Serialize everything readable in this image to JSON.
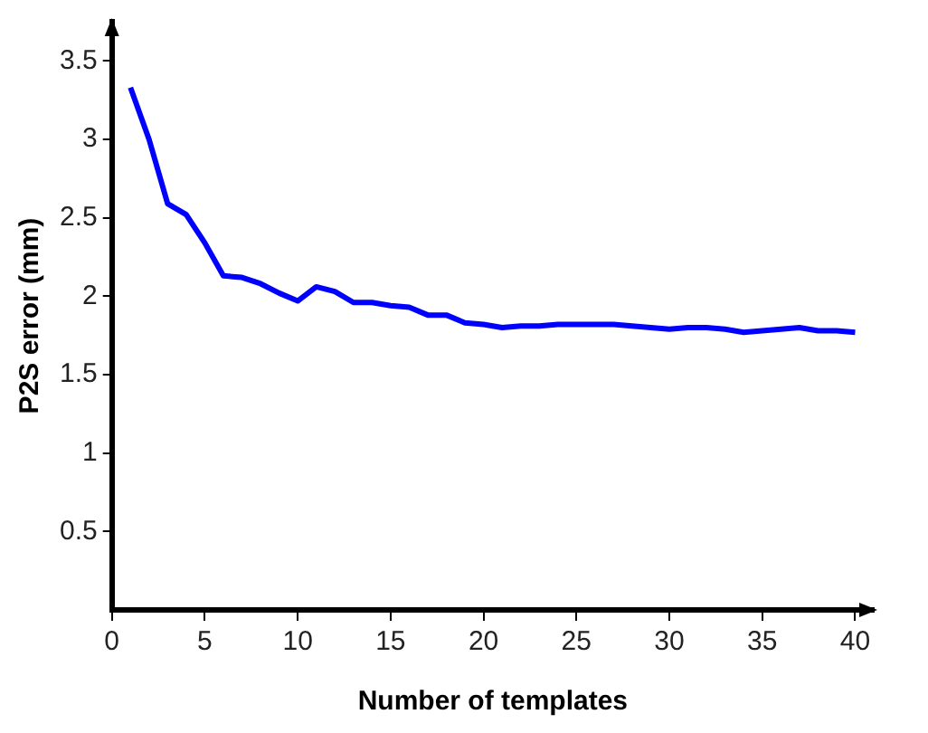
{
  "chart_data": {
    "type": "line",
    "xlabel": "Number of templates",
    "ylabel": "P2S error (mm)",
    "x": [
      1,
      2,
      3,
      4,
      5,
      6,
      7,
      8,
      9,
      10,
      11,
      12,
      13,
      14,
      15,
      16,
      17,
      18,
      19,
      20,
      21,
      22,
      23,
      24,
      25,
      26,
      27,
      28,
      29,
      30,
      31,
      32,
      33,
      34,
      35,
      36,
      37,
      38,
      39,
      40
    ],
    "series": [
      {
        "color": "#0000ff",
        "values": [
          3.33,
          3.0,
          2.59,
          2.52,
          2.34,
          2.13,
          2.12,
          2.08,
          2.02,
          1.97,
          2.06,
          2.03,
          1.96,
          1.96,
          1.94,
          1.93,
          1.88,
          1.88,
          1.83,
          1.82,
          1.8,
          1.81,
          1.81,
          1.82,
          1.82,
          1.82,
          1.82,
          1.81,
          1.8,
          1.79,
          1.8,
          1.8,
          1.79,
          1.77,
          1.78,
          1.79,
          1.8,
          1.78,
          1.78,
          1.77
        ]
      }
    ],
    "xlim": [
      0,
      41
    ],
    "xticks": [
      0,
      5,
      10,
      15,
      20,
      25,
      30,
      35,
      40
    ],
    "ylim": [
      0,
      3.75
    ],
    "yticks": [
      0.5,
      1,
      1.5,
      2,
      2.5,
      3,
      3.5
    ],
    "grid": false,
    "legend": false,
    "marker": "none",
    "line_style": "solid"
  }
}
